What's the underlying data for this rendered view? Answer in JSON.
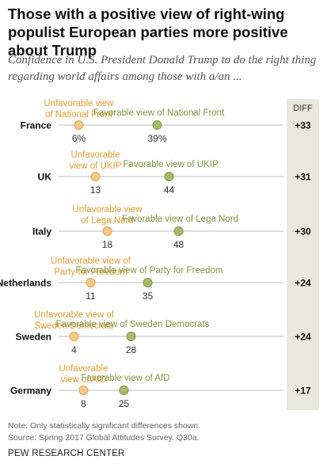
{
  "title": "Those with a positive view of right-wing populist European parties more positive about Trump",
  "subtitle": "Confidence in U.S. President Donald Trump to do the right thing regarding world affairs among those with a/an ...",
  "chart_data": {
    "type": "dot",
    "diff_header": "DIFF",
    "grid": false,
    "colors": {
      "unfavorable": "#f7c98a",
      "unfavorable_stroke": "#e2a24f",
      "unfavorable_text": "#e59a2f",
      "favorable": "#a6bc6c",
      "favorable_stroke": "#7f9747",
      "favorable_text": "#7e9640",
      "diff_band": "#e8e8dc",
      "axis_line": "#bdbdbd"
    },
    "rows": [
      {
        "country": "France",
        "unfavorable": 6,
        "unfavorable_value_label": "6%",
        "unfavorable_label": [
          "Unfavorable view",
          "of National Front"
        ],
        "favorable": 39,
        "favorable_value_label": "39%",
        "favorable_label": [
          "Favorable view of National Front"
        ],
        "diff": "+33"
      },
      {
        "country": "UK",
        "unfavorable": 13,
        "unfavorable_value_label": "13",
        "unfavorable_label": [
          "Unfavorable",
          "view of UKIP"
        ],
        "favorable": 44,
        "favorable_value_label": "44",
        "favorable_label": [
          "Favorable view of UKIP"
        ],
        "diff": "+31"
      },
      {
        "country": "Italy",
        "unfavorable": 18,
        "unfavorable_value_label": "18",
        "unfavorable_label": [
          "Unfavorable view",
          "of Lega Nord"
        ],
        "favorable": 48,
        "favorable_value_label": "48",
        "favorable_label": [
          "Favorable view of Lega Nord"
        ],
        "diff": "+30"
      },
      {
        "country": "Netherlands",
        "unfavorable": 11,
        "unfavorable_value_label": "11",
        "unfavorable_label": [
          "Unfavorable view of",
          "Party for Freedom"
        ],
        "favorable": 35,
        "favorable_value_label": "35",
        "favorable_label": [
          "Favorable view of Party for Freedom"
        ],
        "diff": "+24"
      },
      {
        "country": "Sweden",
        "unfavorable": 4,
        "unfavorable_value_label": "4",
        "unfavorable_label": [
          "Unfavorable view of",
          "Sweden Democrats"
        ],
        "favorable": 28,
        "favorable_value_label": "28",
        "favorable_label": [
          "Favorable view of Sweden Democrats"
        ],
        "diff": "+24"
      },
      {
        "country": "Germany",
        "unfavorable": 8,
        "unfavorable_value_label": "8",
        "unfavorable_label": [
          "Unfavorable",
          "view of AfD"
        ],
        "favorable": 25,
        "favorable_value_label": "25",
        "favorable_label": [
          "Favorable view of AfD"
        ],
        "diff": "+17"
      }
    ]
  },
  "note": "Note: Only statistically significant differences shown.",
  "source": "Source: Spring 2017 Global Attitudes Survey. Q30a.",
  "organization": "PEW RESEARCH CENTER"
}
